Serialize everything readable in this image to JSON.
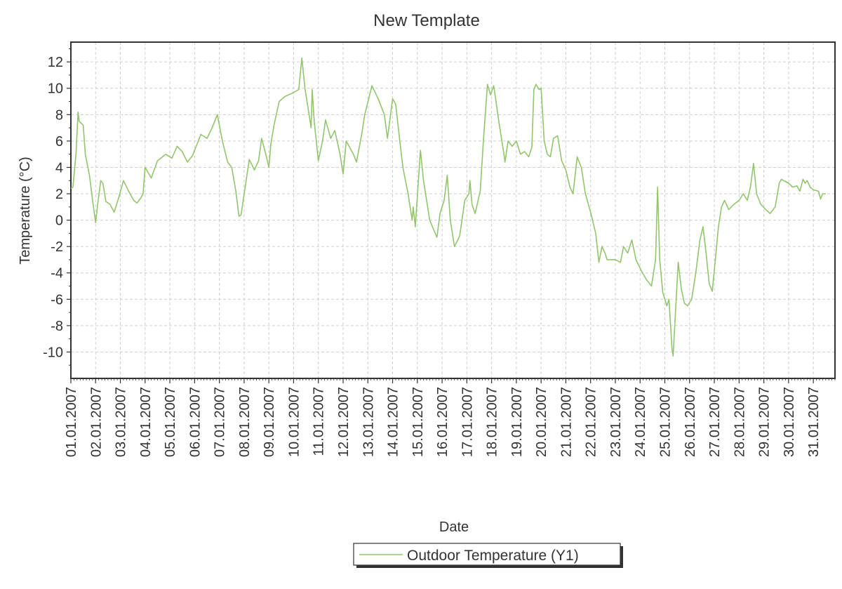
{
  "colors": {
    "series": "#93c56d",
    "grid": "#cfcfcf",
    "frame": "#333333",
    "text": "#333333",
    "background": "#ffffff"
  },
  "legend": {
    "label": "Outdoor Temperature (Y1)",
    "placement": "bottom-center"
  },
  "chart_data": {
    "type": "line",
    "title": "New Template",
    "xlabel": "Date",
    "ylabel": "Temperature (°C)",
    "ylim": [
      -12,
      13.5
    ],
    "y_ticks": [
      12,
      10,
      8,
      6,
      4,
      2,
      0,
      -2,
      -4,
      -6,
      -8,
      -10
    ],
    "x_range": [
      "01.01.2007",
      "31.01.2007 21:00"
    ],
    "x_tick_labels": [
      "01.01.2007",
      "02.01.2007",
      "03.01.2007",
      "04.01.2007",
      "05.01.2007",
      "06.01.2007",
      "07.01.2007",
      "08.01.2007",
      "09.01.2007",
      "10.01.2007",
      "11.01.2007",
      "12.01.2007",
      "13.01.2007",
      "14.01.2007",
      "15.01.2007",
      "16.01.2007",
      "17.01.2007",
      "18.01.2007",
      "19.01.2007",
      "20.01.2007",
      "21.01.2007",
      "22.01.2007",
      "23.01.2007",
      "24.01.2007",
      "25.01.2007",
      "26.01.2007",
      "27.01.2007",
      "28.01.2007",
      "29.01.2007",
      "30.01.2007",
      "31.01.2007"
    ],
    "grid": true,
    "series": [
      {
        "name": "Outdoor Temperature (Y1)",
        "color": "#93c56d",
        "points": [
          [
            "01.01.2007 00:00",
            2.4
          ],
          [
            "01.01.2007 02:00",
            2.5
          ],
          [
            "01.01.2007 05:00",
            5.0
          ],
          [
            "01.01.2007 07:00",
            8.2
          ],
          [
            "01.01.2007 08:00",
            7.5
          ],
          [
            "01.01.2007 12:00",
            7.2
          ],
          [
            "01.01.2007 14:00",
            5.0
          ],
          [
            "01.01.2007 18:00",
            3.4
          ],
          [
            "01.01.2007 21:00",
            1.5
          ],
          [
            "02.01.2007 00:00",
            -0.2
          ],
          [
            "02.01.2007 02:00",
            1.2
          ],
          [
            "02.01.2007 05:00",
            3.0
          ],
          [
            "02.01.2007 07:00",
            2.8
          ],
          [
            "02.01.2007 10:00",
            1.4
          ],
          [
            "02.01.2007 14:00",
            1.2
          ],
          [
            "02.01.2007 18:00",
            0.6
          ],
          [
            "02.01.2007 22:00",
            1.6
          ],
          [
            "03.01.2007 03:00",
            3.0
          ],
          [
            "03.01.2007 08:00",
            2.2
          ],
          [
            "03.01.2007 13:00",
            1.5
          ],
          [
            "03.01.2007 16:00",
            1.3
          ],
          [
            "03.01.2007 20:00",
            1.7
          ],
          [
            "03.01.2007 22:00",
            2.0
          ],
          [
            "04.01.2007 00:00",
            4.0
          ],
          [
            "04.01.2007 06:00",
            3.2
          ],
          [
            "04.01.2007 12:00",
            4.5
          ],
          [
            "04.01.2007 20:00",
            5.0
          ],
          [
            "05.01.2007 02:00",
            4.7
          ],
          [
            "05.01.2007 07:00",
            5.6
          ],
          [
            "05.01.2007 12:00",
            5.2
          ],
          [
            "05.01.2007 17:00",
            4.4
          ],
          [
            "05.01.2007 22:00",
            4.9
          ],
          [
            "06.01.2007 06:00",
            6.5
          ],
          [
            "06.01.2007 12:00",
            6.2
          ],
          [
            "06.01.2007 17:00",
            7.0
          ],
          [
            "06.01.2007 22:00",
            8.0
          ],
          [
            "07.01.2007 03:00",
            6.0
          ],
          [
            "07.01.2007 08:00",
            4.4
          ],
          [
            "07.01.2007 12:00",
            4.0
          ],
          [
            "07.01.2007 16:00",
            2.2
          ],
          [
            "07.01.2007 19:00",
            0.3
          ],
          [
            "07.01.2007 21:00",
            0.4
          ],
          [
            "08.01.2007 02:00",
            3.0
          ],
          [
            "08.01.2007 05:00",
            4.6
          ],
          [
            "08.01.2007 10:00",
            3.8
          ],
          [
            "08.01.2007 14:00",
            4.5
          ],
          [
            "08.01.2007 17:00",
            6.2
          ],
          [
            "08.01.2007 21:00",
            5.0
          ],
          [
            "09.01.2007 00:00",
            4.0
          ],
          [
            "09.01.2007 02:00",
            5.8
          ],
          [
            "09.01.2007 05:00",
            7.2
          ],
          [
            "09.01.2007 10:00",
            9.0
          ],
          [
            "09.01.2007 16:00",
            9.4
          ],
          [
            "09.01.2007 22:00",
            9.6
          ],
          [
            "10.01.2007 05:00",
            9.9
          ],
          [
            "10.01.2007 08:00",
            12.3
          ],
          [
            "10.01.2007 11:00",
            10.0
          ],
          [
            "10.01.2007 15:00",
            8.0
          ],
          [
            "10.01.2007 17:00",
            7.0
          ],
          [
            "10.01.2007 18:00",
            9.9
          ],
          [
            "10.01.2007 20:00",
            7.5
          ],
          [
            "11.01.2007 00:00",
            4.5
          ],
          [
            "11.01.2007 04:00",
            6.0
          ],
          [
            "11.01.2007 07:00",
            7.6
          ],
          [
            "11.01.2007 12:00",
            6.2
          ],
          [
            "11.01.2007 16:00",
            6.8
          ],
          [
            "11.01.2007 21:00",
            5.0
          ],
          [
            "12.01.2007 00:00",
            3.5
          ],
          [
            "12.01.2007 03:00",
            6.0
          ],
          [
            "12.01.2007 10:00",
            5.0
          ],
          [
            "12.01.2007 13:00",
            4.4
          ],
          [
            "12.01.2007 18:00",
            6.5
          ],
          [
            "12.01.2007 21:00",
            8.0
          ],
          [
            "13.01.2007 04:00",
            10.2
          ],
          [
            "13.01.2007 10:00",
            9.2
          ],
          [
            "13.01.2007 16:00",
            8.0
          ],
          [
            "13.01.2007 19:00",
            6.2
          ],
          [
            "13.01.2007 22:00",
            8.0
          ],
          [
            "14.01.2007 00:00",
            9.2
          ],
          [
            "14.01.2007 03:00",
            8.8
          ],
          [
            "14.01.2007 07:00",
            6.0
          ],
          [
            "14.01.2007 10:00",
            4.0
          ],
          [
            "14.01.2007 15:00",
            2.0
          ],
          [
            "14.01.2007 19:00",
            0.0
          ],
          [
            "14.01.2007 20:00",
            1.0
          ],
          [
            "14.01.2007 22:00",
            -0.5
          ],
          [
            "15.01.2007 01:00",
            3.0
          ],
          [
            "15.01.2007 03:00",
            5.3
          ],
          [
            "15.01.2007 06:00",
            3.0
          ],
          [
            "15.01.2007 09:00",
            1.5
          ],
          [
            "15.01.2007 12:00",
            0.0
          ],
          [
            "15.01.2007 19:00",
            -1.3
          ],
          [
            "15.01.2007 22:00",
            0.5
          ],
          [
            "16.01.2007 02:00",
            1.5
          ],
          [
            "16.01.2007 05:00",
            3.4
          ],
          [
            "16.01.2007 08:00",
            0.0
          ],
          [
            "16.01.2007 12:00",
            -2.0
          ],
          [
            "16.01.2007 17:00",
            -1.2
          ],
          [
            "16.01.2007 22:00",
            1.5
          ],
          [
            "17.01.2007 02:00",
            2.0
          ],
          [
            "17.01.2007 03:00",
            3.0
          ],
          [
            "17.01.2007 05:00",
            1.2
          ],
          [
            "17.01.2007 08:00",
            0.5
          ],
          [
            "17.01.2007 13:00",
            2.2
          ],
          [
            "17.01.2007 16:00",
            6.0
          ],
          [
            "17.01.2007 20:00",
            10.3
          ],
          [
            "17.01.2007 23:00",
            9.5
          ],
          [
            "18.01.2007 02:00",
            10.2
          ],
          [
            "18.01.2007 07:00",
            7.5
          ],
          [
            "18.01.2007 12:00",
            5.0
          ],
          [
            "18.01.2007 13:00",
            4.4
          ],
          [
            "18.01.2007 16:00",
            6.0
          ],
          [
            "18.01.2007 20:00",
            5.6
          ],
          [
            "19.01.2007 00:00",
            6.0
          ],
          [
            "19.01.2007 04:00",
            5.0
          ],
          [
            "19.01.2007 08:00",
            5.2
          ],
          [
            "19.01.2007 12:00",
            4.8
          ],
          [
            "19.01.2007 15:00",
            5.5
          ],
          [
            "19.01.2007 17:00",
            9.9
          ],
          [
            "19.01.2007 19:00",
            10.3
          ],
          [
            "19.01.2007 22:00",
            9.9
          ],
          [
            "20.01.2007 00:00",
            10.0
          ],
          [
            "20.01.2007 03:00",
            6.0
          ],
          [
            "20.01.2007 06:00",
            5.0
          ],
          [
            "20.01.2007 09:00",
            4.8
          ],
          [
            "20.01.2007 12:00",
            6.2
          ],
          [
            "20.01.2007 16:00",
            6.4
          ],
          [
            "20.01.2007 20:00",
            4.5
          ],
          [
            "21.01.2007 00:00",
            3.8
          ],
          [
            "21.01.2007 04:00",
            2.5
          ],
          [
            "21.01.2007 07:00",
            2.0
          ],
          [
            "21.01.2007 11:00",
            4.8
          ],
          [
            "21.01.2007 15:00",
            4.0
          ],
          [
            "21.01.2007 19:00",
            2.0
          ],
          [
            "22.01.2007 00:00",
            0.6
          ],
          [
            "22.01.2007 05:00",
            -1.0
          ],
          [
            "22.01.2007 08:00",
            -3.2
          ],
          [
            "22.01.2007 11:00",
            -2.0
          ],
          [
            "22.01.2007 14:00",
            -2.5
          ],
          [
            "22.01.2007 16:00",
            -3.0
          ],
          [
            "23.01.2007 00:00",
            -3.0
          ],
          [
            "23.01.2007 05:00",
            -3.2
          ],
          [
            "23.01.2007 08:00",
            -2.0
          ],
          [
            "23.01.2007 12:00",
            -2.5
          ],
          [
            "23.01.2007 16:00",
            -1.5
          ],
          [
            "23.01.2007 20:00",
            -3.0
          ],
          [
            "24.01.2007 01:00",
            -3.8
          ],
          [
            "24.01.2007 06:00",
            -4.5
          ],
          [
            "24.01.2007 11:00",
            -5.0
          ],
          [
            "24.01.2007 15:00",
            -3.0
          ],
          [
            "24.01.2007 17:00",
            2.5
          ],
          [
            "24.01.2007 19:00",
            -3.0
          ],
          [
            "24.01.2007 22:00",
            -5.5
          ],
          [
            "25.01.2007 02:00",
            -6.5
          ],
          [
            "25.01.2007 04:00",
            -6.0
          ],
          [
            "25.01.2007 07:00",
            -9.8
          ],
          [
            "25.01.2007 08:00",
            -10.3
          ],
          [
            "25.01.2007 11:00",
            -6.0
          ],
          [
            "25.01.2007 13:00",
            -3.2
          ],
          [
            "25.01.2007 16:00",
            -5.2
          ],
          [
            "25.01.2007 19:00",
            -6.3
          ],
          [
            "25.01.2007 22:00",
            -6.5
          ],
          [
            "26.01.2007 02:00",
            -6.0
          ],
          [
            "26.01.2007 06:00",
            -4.0
          ],
          [
            "26.01.2007 10:00",
            -1.5
          ],
          [
            "26.01.2007 13:00",
            -0.5
          ],
          [
            "26.01.2007 16:00",
            -2.5
          ],
          [
            "26.01.2007 19:00",
            -4.8
          ],
          [
            "26.01.2007 22:00",
            -5.4
          ],
          [
            "27.01.2007 01:00",
            -3.0
          ],
          [
            "27.01.2007 04:00",
            -0.5
          ],
          [
            "27.01.2007 07:00",
            1.0
          ],
          [
            "27.01.2007 10:00",
            1.5
          ],
          [
            "27.01.2007 14:00",
            0.8
          ],
          [
            "27.01.2007 19:00",
            1.2
          ],
          [
            "28.01.2007 00:00",
            1.5
          ],
          [
            "28.01.2007 04:00",
            2.0
          ],
          [
            "28.01.2007 08:00",
            1.5
          ],
          [
            "28.01.2007 11:00",
            2.5
          ],
          [
            "28.01.2007 14:00",
            4.3
          ],
          [
            "28.01.2007 17:00",
            2.0
          ],
          [
            "28.01.2007 21:00",
            1.2
          ],
          [
            "29.01.2007 02:00",
            0.8
          ],
          [
            "29.01.2007 06:00",
            0.5
          ],
          [
            "29.01.2007 11:00",
            1.0
          ],
          [
            "29.01.2007 15:00",
            2.8
          ],
          [
            "29.01.2007 17:00",
            3.1
          ],
          [
            "30.01.2007 00:00",
            2.8
          ],
          [
            "30.01.2007 04:00",
            2.5
          ],
          [
            "30.01.2007 08:00",
            2.6
          ],
          [
            "30.01.2007 11:00",
            2.2
          ],
          [
            "30.01.2007 14:00",
            3.1
          ],
          [
            "30.01.2007 16:00",
            2.8
          ],
          [
            "30.01.2007 18:00",
            3.0
          ],
          [
            "30.01.2007 21:00",
            2.5
          ],
          [
            "31.01.2007 00:00",
            2.3
          ],
          [
            "31.01.2007 05:00",
            2.2
          ],
          [
            "31.01.2007 07:00",
            1.6
          ],
          [
            "31.01.2007 09:00",
            2.0
          ],
          [
            "31.01.2007 12:00",
            2.0
          ]
        ]
      }
    ]
  }
}
